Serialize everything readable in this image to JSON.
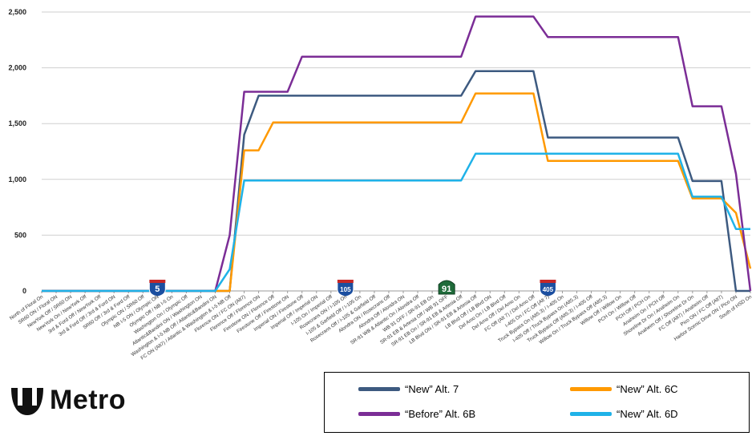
{
  "chart_data": {
    "type": "line",
    "title": "",
    "xlabel": "",
    "ylabel": "",
    "ylim": [
      0,
      2500
    ],
    "yticks": [
      "0",
      "500",
      "1,000",
      "1,500",
      "2,000",
      "2,500"
    ],
    "ytick_values": [
      0,
      500,
      1000,
      1500,
      2000,
      2500
    ],
    "grid": true,
    "legend_position": "bottom-right",
    "categories": [
      "North of Floral On",
      "SR60 ON / Floral ON",
      "NewYork Off / SR60 ON",
      "NewYork On / NewYork Off",
      "3rd & Ford Off / NewYork Off",
      "3rd & Ford Off / 3rd & Ford ON",
      "SR60 Off / 3rd & Ford Off",
      "Olympic ON / SR60 Off",
      "NB I-5 ON / Olympic ON",
      "Olympic Off / NB I-5 On",
      "Washington On / Olympic Off",
      "Atlantic&Bandini ON / Washington ON",
      "Washington & I-5 NB Off / Atlantic&Bandini ON",
      "FC ON (Alt7) / Atlantic & Washington & I-5 NB Off",
      "Florence ON / FC ON (Alt7)",
      "Florence Off / Florence ON",
      "Firestone ON / Florence Off",
      "Firestone Off / Firestone ON",
      "Imperial ON / Firestone Off",
      "Imperial Off / Imperial ON",
      "I-105 On / Imperial Off",
      "Rosecrans ON / I-105 On",
      "I-105 & Garfield Off / I-105 On",
      "Rosecrans Off / I-105 & Garfield Off",
      "Alondra ON / Rosecrans Off",
      "Alondra Off / Alondra ON",
      "SR-91 WB & Atlantic On / Alondra Off",
      "WB 91 OFF / SR-91 EB On",
      "SR-91 EB & Artesia Off / WB 91 OFF",
      "SR-91 EB On / SR-91 EB & Artesia Off",
      "LB Blvd ON / SR-91 EB & Artesia Off",
      "LB Blvd Off / LB Blvd ON",
      "Del Amo On / LB Blvd Off",
      "Del Amo Off / Del Amo On",
      "FC Off (Alt 7) / Del Amo Off",
      "I-405 On / FC Off (Alt 7)",
      "Truck Bypass On (Alt5.3) / I-405 On",
      "I-405 Off / Truck Bypass On (Alt5.3)",
      "Truck Bypass Off (Alt5.3) / I-405 Off",
      "Willow On / Truck Bypass Off (Alt5.3)",
      "Willow Off / Willow On",
      "PCH On / Willow Off",
      "PCH Off / PCH On",
      "Anaheim On / PCH Off",
      "Shoreline Dr On / Anaheim On",
      "Anaheim Off / Shoreline Dr On",
      "FC Off (Alt7) / Anaheim Off",
      "Pico ON / FC Off (Alt7)",
      "Harbor Scenic Drive ON / Pico ON",
      "South of HSD On"
    ],
    "series": [
      {
        "name": "\"New\"  Alt. 7",
        "color": "#3d5a80",
        "values": [
          0,
          0,
          0,
          0,
          0,
          0,
          0,
          0,
          0,
          0,
          0,
          0,
          0,
          0,
          1400,
          1750,
          1750,
          1750,
          1750,
          1750,
          1750,
          1750,
          1750,
          1750,
          1750,
          1750,
          1750,
          1750,
          1750,
          1750,
          1970,
          1970,
          1970,
          1970,
          1970,
          1375,
          1375,
          1375,
          1375,
          1375,
          1375,
          1375,
          1375,
          1375,
          1375,
          985,
          985,
          985,
          0,
          0
        ]
      },
      {
        "name": "\"New\"  Alt. 6C",
        "color": "#ff9900",
        "values": [
          0,
          0,
          0,
          0,
          0,
          0,
          0,
          0,
          0,
          0,
          0,
          0,
          0,
          0,
          1260,
          1260,
          1510,
          1510,
          1510,
          1510,
          1510,
          1510,
          1510,
          1510,
          1510,
          1510,
          1510,
          1510,
          1510,
          1510,
          1770,
          1770,
          1770,
          1770,
          1770,
          1165,
          1165,
          1165,
          1165,
          1165,
          1165,
          1165,
          1165,
          1165,
          1165,
          830,
          830,
          830,
          700,
          200
        ]
      },
      {
        "name": "\"Before\"  Alt. 6B",
        "color": "#7b2d96",
        "values": [
          0,
          0,
          0,
          0,
          0,
          0,
          0,
          0,
          0,
          0,
          0,
          0,
          0,
          500,
          1785,
          1785,
          1785,
          1785,
          2100,
          2100,
          2100,
          2100,
          2100,
          2100,
          2100,
          2100,
          2100,
          2100,
          2100,
          2100,
          2460,
          2460,
          2460,
          2460,
          2460,
          2275,
          2275,
          2275,
          2275,
          2275,
          2275,
          2275,
          2275,
          2275,
          2275,
          1655,
          1655,
          1655,
          1050,
          0
        ]
      },
      {
        "name": "\"New\"  Alt. 6D",
        "color": "#1fb2e8",
        "values": [
          0,
          0,
          0,
          0,
          0,
          0,
          0,
          0,
          0,
          0,
          0,
          0,
          0,
          195,
          990,
          990,
          990,
          990,
          990,
          990,
          990,
          990,
          990,
          990,
          990,
          990,
          990,
          990,
          990,
          990,
          1230,
          1230,
          1230,
          1230,
          1230,
          1230,
          1230,
          1230,
          1230,
          1230,
          1230,
          1230,
          1230,
          1230,
          1230,
          845,
          845,
          845,
          555,
          555
        ]
      }
    ],
    "shields": [
      {
        "label": "5",
        "route": "I-5",
        "at_category": 8
      },
      {
        "label": "105",
        "route": "I-105",
        "at_category": 21
      },
      {
        "label": "91",
        "route": "SR-91",
        "at_category": 28
      },
      {
        "label": "405",
        "route": "I-405",
        "at_category": 35
      }
    ]
  },
  "legend": {
    "items": [
      {
        "label": "“New”  Alt. 7",
        "color": "#3d5a80"
      },
      {
        "label": "“New”  Alt. 6C",
        "color": "#ff9900"
      },
      {
        "label": "“Before”  Alt. 6B",
        "color": "#7b2d96"
      },
      {
        "label": "“New”  Alt. 6D",
        "color": "#1fb2e8"
      }
    ]
  },
  "logo": {
    "text": "Metro"
  }
}
